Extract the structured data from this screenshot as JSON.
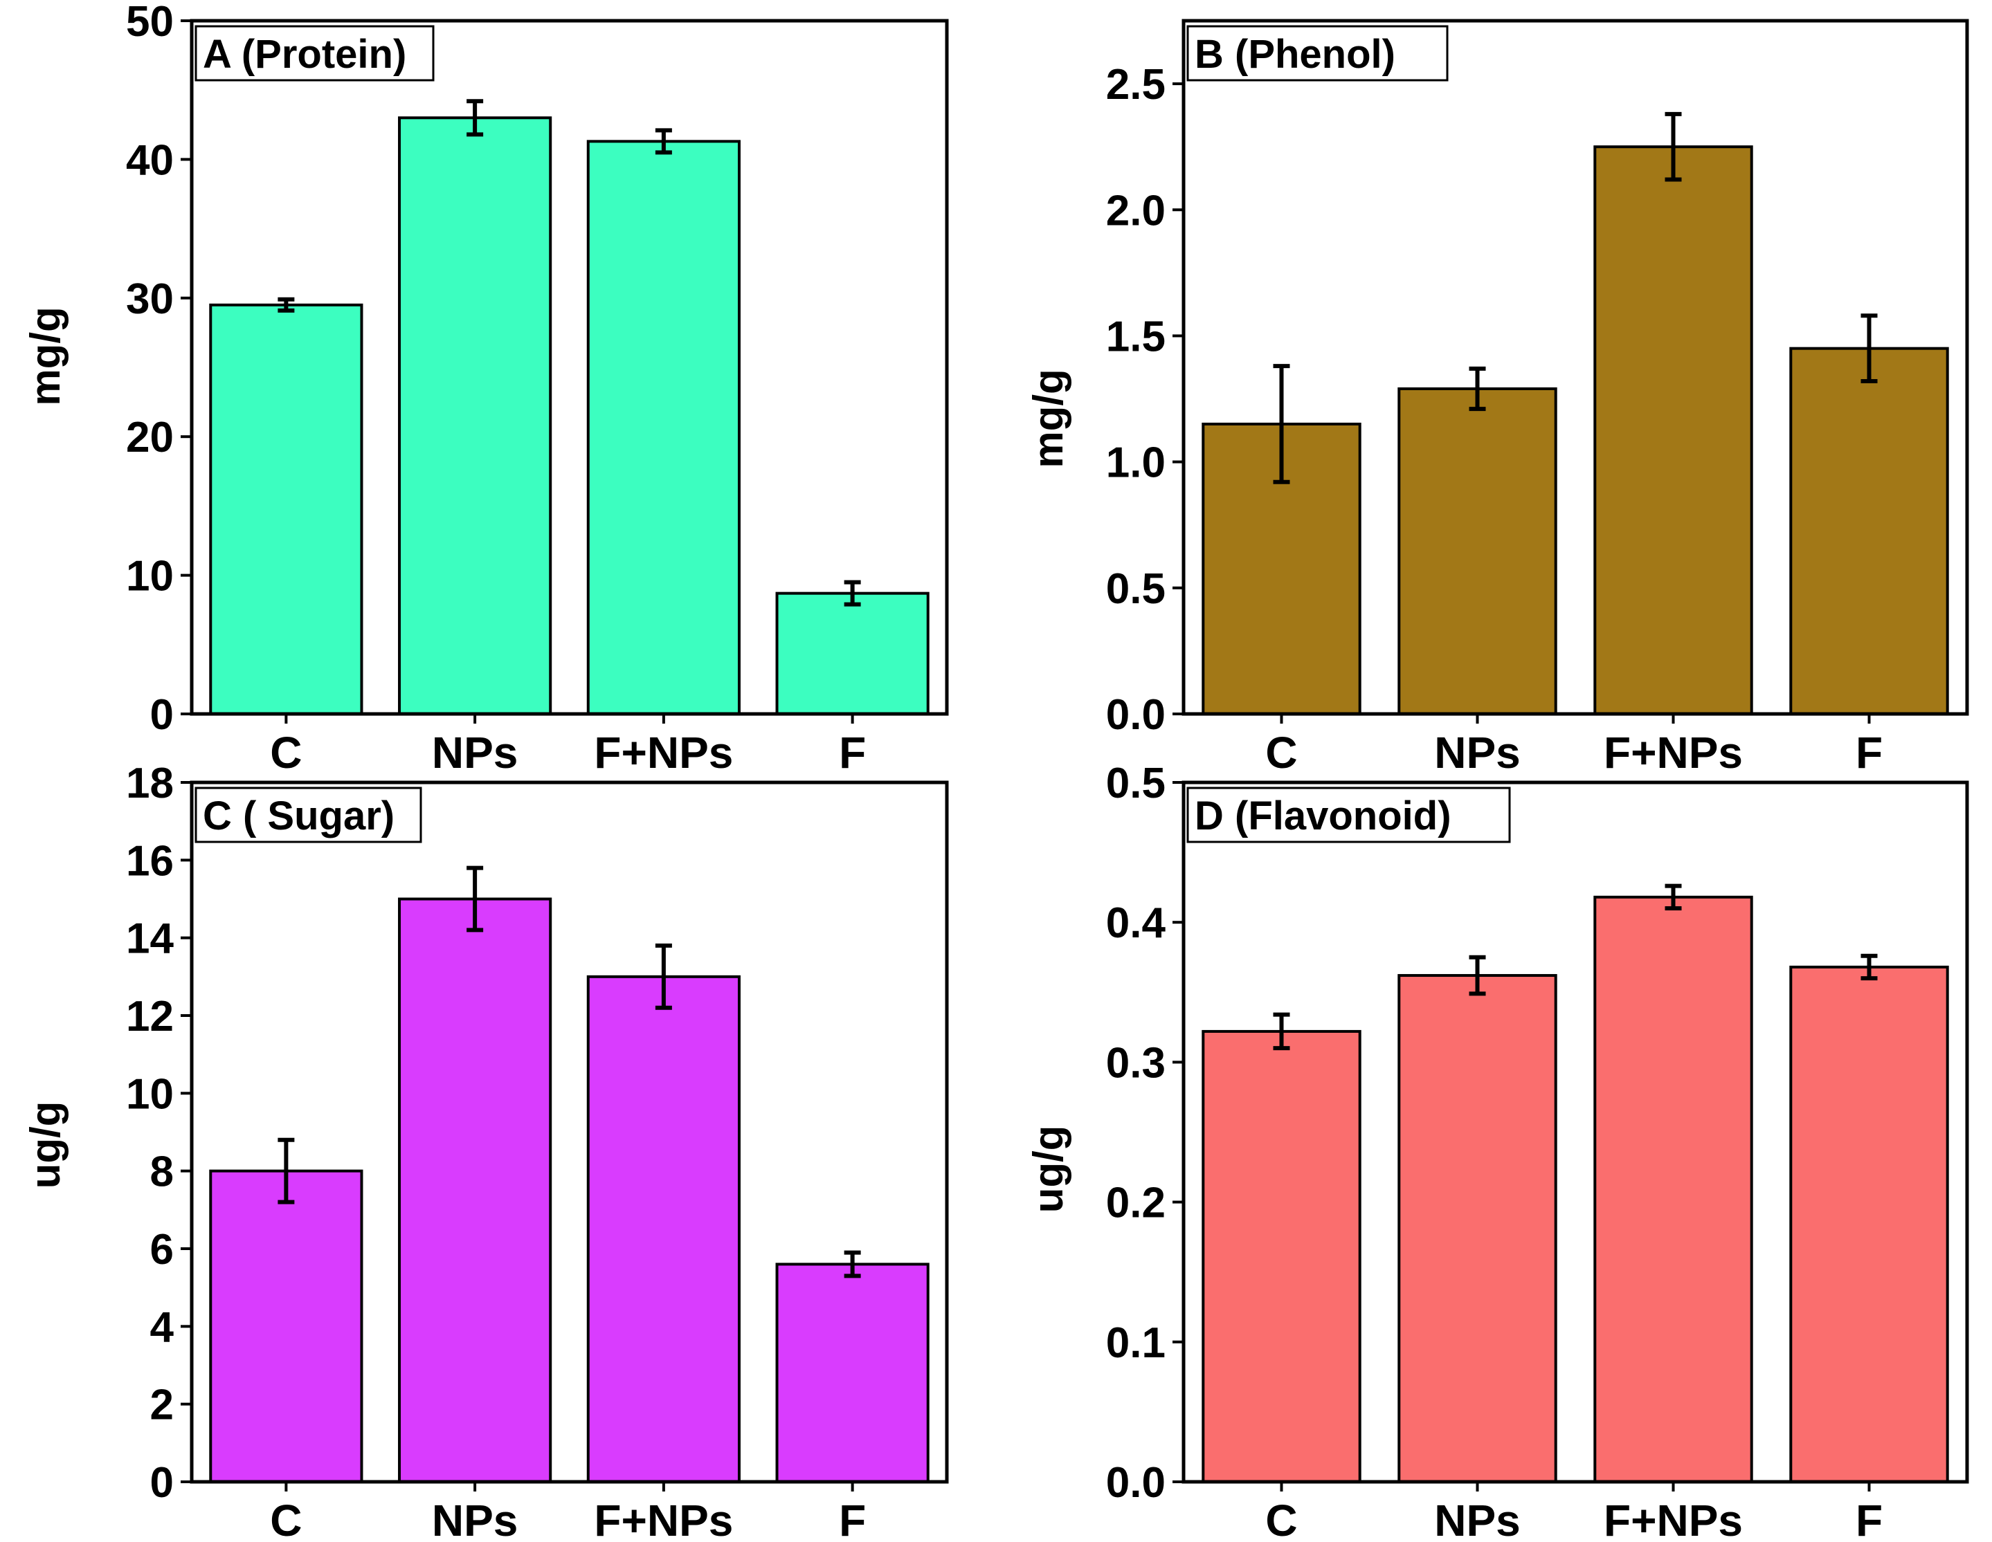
{
  "chart_data": [
    {
      "type": "bar",
      "title": "A (Protein)",
      "ylabel": "mg/g",
      "categories": [
        "C",
        "NPs",
        "F+NPs",
        "F"
      ],
      "values": [
        29.5,
        43.0,
        41.3,
        8.7
      ],
      "errors": [
        0.4,
        1.2,
        0.8,
        0.8
      ],
      "ylim": [
        0,
        50
      ],
      "yticks": [
        0,
        10,
        20,
        30,
        40,
        50
      ],
      "ytick_labels": [
        "0",
        "10",
        "20",
        "30",
        "40",
        "50"
      ],
      "color": "#3cfec0"
    },
    {
      "type": "bar",
      "title": "B (Phenol)",
      "ylabel": "mg/g",
      "categories": [
        "C",
        "NPs",
        "F+NPs",
        "F"
      ],
      "values": [
        1.15,
        1.29,
        2.25,
        1.45
      ],
      "errors": [
        0.23,
        0.08,
        0.13,
        0.13
      ],
      "ylim": [
        0,
        2.75
      ],
      "yticks": [
        0,
        0.5,
        1.0,
        1.5,
        2.0,
        2.5
      ],
      "ytick_labels": [
        "0.0",
        "0.5",
        "1.0",
        "1.5",
        "2.0",
        "2.5"
      ],
      "color": "#a27817"
    },
    {
      "type": "bar",
      "title": "C ( Sugar)",
      "ylabel": "ug/g",
      "categories": [
        "C",
        "NPs",
        "F+NPs",
        "F"
      ],
      "values": [
        8.0,
        15.0,
        13.0,
        5.6
      ],
      "errors": [
        0.8,
        0.8,
        0.8,
        0.3
      ],
      "ylim": [
        0,
        18
      ],
      "yticks": [
        0,
        2,
        4,
        6,
        8,
        10,
        12,
        14,
        16,
        18
      ],
      "ytick_labels": [
        "0",
        "2",
        "4",
        "6",
        "8",
        "10",
        "12",
        "14",
        "16",
        "18"
      ],
      "color": "#d93cfe"
    },
    {
      "type": "bar",
      "title": "D (Flavonoid)",
      "ylabel": "ug/g",
      "categories": [
        "C",
        "NPs",
        "F+NPs",
        "F"
      ],
      "values": [
        0.322,
        0.362,
        0.418,
        0.368
      ],
      "errors": [
        0.012,
        0.013,
        0.008,
        0.008
      ],
      "ylim": [
        0,
        0.5
      ],
      "yticks": [
        0,
        0.1,
        0.2,
        0.3,
        0.4,
        0.5
      ],
      "ytick_labels": [
        "0.0",
        "0.1",
        "0.2",
        "0.3",
        "0.4",
        "0.5"
      ],
      "color": "#fa6e6e"
    }
  ]
}
